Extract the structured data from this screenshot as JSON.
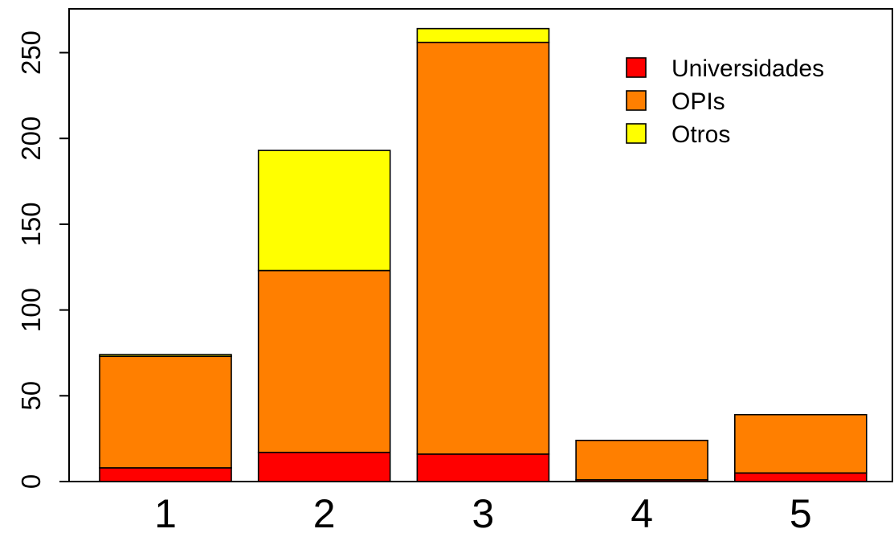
{
  "chart_data": {
    "type": "bar",
    "stacked": true,
    "categories": [
      "1",
      "2",
      "3",
      "4",
      "5"
    ],
    "series": [
      {
        "name": "Universidades",
        "color": "#ff0000",
        "values": [
          8,
          17,
          16,
          1,
          5
        ]
      },
      {
        "name": "OPIs",
        "color": "#ff7f00",
        "values": [
          65,
          106,
          240,
          23,
          34
        ]
      },
      {
        "name": "Otros",
        "color": "#ffff00",
        "values": [
          1,
          70,
          8,
          0,
          0
        ]
      }
    ],
    "yticks": [
      0,
      50,
      100,
      150,
      200,
      250
    ],
    "ylim": [
      0,
      275
    ],
    "title": "",
    "xlabel": "",
    "ylabel": "",
    "legend_position": "top-right",
    "grid": false,
    "box": true
  }
}
